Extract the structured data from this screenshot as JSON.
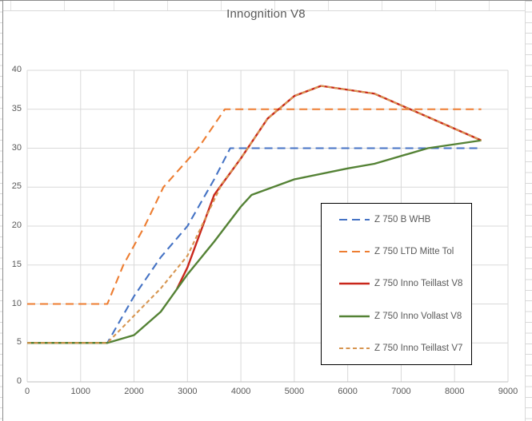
{
  "chart": {
    "colors": {
      "grid": "#d9d9d9",
      "axis_line": "#bfbfbf",
      "text": "#595959",
      "legend_border": "#000000",
      "chart_background": "#ffffff"
    }
  },
  "chart_data": {
    "type": "line",
    "title": "Innognition V8",
    "xlabel": "",
    "ylabel": "",
    "xlim": [
      0,
      9000
    ],
    "ylim": [
      0,
      40
    ],
    "x_ticks": [
      0,
      1000,
      2000,
      3000,
      4000,
      5000,
      6000,
      7000,
      8000,
      9000
    ],
    "y_ticks": [
      0,
      5,
      10,
      15,
      20,
      25,
      30,
      35,
      40
    ],
    "grid": true,
    "legend_position": "middle-right",
    "series": [
      {
        "name": "Z 750 B WHB",
        "color": "#4472c4",
        "style": "long-dash",
        "points": [
          [
            0,
            5
          ],
          [
            1500,
            5
          ],
          [
            2000,
            11
          ],
          [
            2500,
            16
          ],
          [
            3000,
            20
          ],
          [
            3500,
            26
          ],
          [
            3800,
            30
          ],
          [
            8500,
            30
          ]
        ]
      },
      {
        "name": "Z 750 LTD Mitte Tol",
        "color": "#ed7d31",
        "style": "long-dash",
        "points": [
          [
            0,
            10
          ],
          [
            1500,
            10
          ],
          [
            1800,
            15
          ],
          [
            2200,
            20
          ],
          [
            2550,
            25
          ],
          [
            3200,
            30
          ],
          [
            3700,
            35
          ],
          [
            8500,
            35
          ]
        ]
      },
      {
        "name": "Z 750 Inno Teillast V8",
        "color": "#c9271b",
        "style": "solid",
        "points": [
          [
            2800,
            11.9
          ],
          [
            3000,
            14.7
          ],
          [
            3500,
            24
          ],
          [
            4000,
            28.7
          ],
          [
            4500,
            33.8
          ],
          [
            5000,
            36.7
          ],
          [
            5500,
            38
          ],
          [
            6500,
            37
          ],
          [
            8500,
            31
          ]
        ]
      },
      {
        "name": "Z 750 Inno Vollast V8",
        "color": "#548235",
        "style": "solid",
        "points": [
          [
            0,
            5
          ],
          [
            1500,
            5
          ],
          [
            2000,
            6
          ],
          [
            2500,
            9
          ],
          [
            3000,
            13.8
          ],
          [
            3500,
            18
          ],
          [
            4000,
            22.5
          ],
          [
            4200,
            24
          ],
          [
            5000,
            26
          ],
          [
            6000,
            27.4
          ],
          [
            6500,
            28
          ],
          [
            7500,
            30
          ],
          [
            8500,
            31
          ]
        ]
      },
      {
        "name": "Z 750 Inno Teillast V7",
        "color": "#d79550",
        "style": "short-dash",
        "points": [
          [
            0,
            5
          ],
          [
            1500,
            5
          ],
          [
            2000,
            8.5
          ],
          [
            2500,
            12
          ],
          [
            3000,
            16.2
          ],
          [
            3650,
            25.5
          ],
          [
            4000,
            28.7
          ],
          [
            4500,
            33.8
          ],
          [
            5000,
            36.7
          ],
          [
            5500,
            38
          ],
          [
            6500,
            37
          ],
          [
            8500,
            31
          ]
        ]
      }
    ]
  }
}
